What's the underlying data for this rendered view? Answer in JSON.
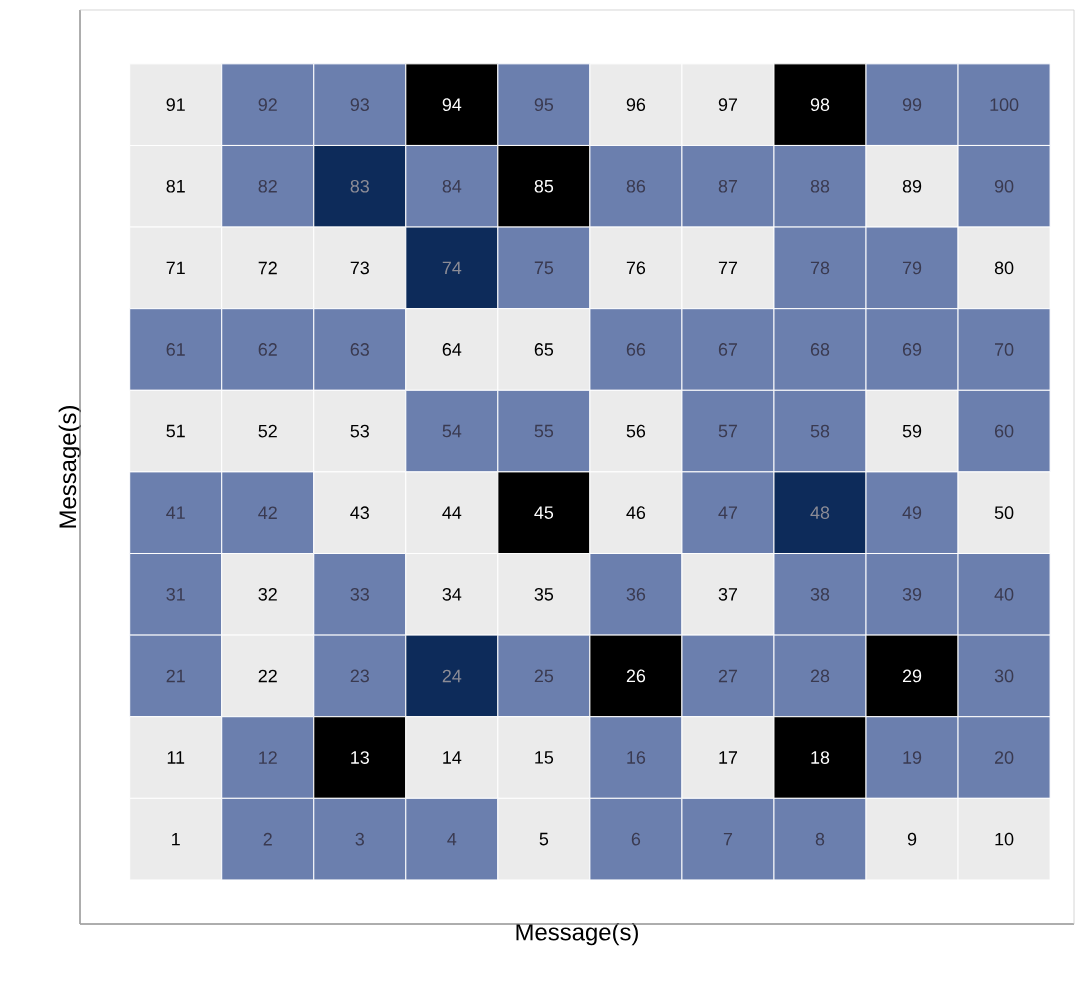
{
  "chart_data": {
    "type": "heatmap",
    "xlabel": "Message(s)",
    "ylabel": "Message(s)",
    "tick_labels": false,
    "data_labels": true,
    "categories": [
      null,
      null,
      null,
      null,
      null,
      null,
      null,
      null,
      null,
      null
    ],
    "y_categories": [
      null,
      null,
      null,
      null,
      null,
      null,
      null,
      null,
      null,
      null
    ],
    "cells": [
      [
        91,
        92,
        93,
        94,
        95,
        96,
        97,
        98,
        99,
        100
      ],
      [
        81,
        82,
        83,
        84,
        85,
        86,
        87,
        88,
        89,
        90
      ],
      [
        71,
        72,
        73,
        74,
        75,
        76,
        77,
        78,
        79,
        80
      ],
      [
        61,
        62,
        63,
        64,
        65,
        66,
        67,
        68,
        69,
        70
      ],
      [
        51,
        52,
        53,
        54,
        55,
        56,
        57,
        58,
        59,
        60
      ],
      [
        41,
        42,
        43,
        44,
        45,
        46,
        47,
        48,
        49,
        50
      ],
      [
        31,
        32,
        33,
        34,
        35,
        36,
        37,
        38,
        39,
        40
      ],
      [
        21,
        22,
        23,
        24,
        25,
        26,
        27,
        28,
        29,
        30
      ],
      [
        11,
        12,
        13,
        14,
        15,
        16,
        17,
        18,
        19,
        20
      ],
      [
        1,
        2,
        3,
        4,
        5,
        6,
        7,
        8,
        9,
        10
      ]
    ],
    "colors": [
      [
        "#ebebeb",
        "#6b7fae",
        "#6b7fae",
        "#000000",
        "#6b7fae",
        "#ebebeb",
        "#ebebeb",
        "#000000",
        "#6b7fae",
        "#6b7fae"
      ],
      [
        "#ebebeb",
        "#6b7fae",
        "#0d2b5a",
        "#6b7fae",
        "#000000",
        "#6b7fae",
        "#6b7fae",
        "#6b7fae",
        "#ebebeb",
        "#6b7fae"
      ],
      [
        "#ebebeb",
        "#ebebeb",
        "#ebebeb",
        "#0d2b5a",
        "#6b7fae",
        "#ebebeb",
        "#ebebeb",
        "#6b7fae",
        "#6b7fae",
        "#ebebeb"
      ],
      [
        "#6b7fae",
        "#6b7fae",
        "#6b7fae",
        "#ebebeb",
        "#ebebeb",
        "#6b7fae",
        "#6b7fae",
        "#6b7fae",
        "#6b7fae",
        "#6b7fae"
      ],
      [
        "#ebebeb",
        "#ebebeb",
        "#ebebeb",
        "#6b7fae",
        "#6b7fae",
        "#ebebeb",
        "#6b7fae",
        "#6b7fae",
        "#ebebeb",
        "#6b7fae"
      ],
      [
        "#6b7fae",
        "#6b7fae",
        "#ebebeb",
        "#ebebeb",
        "#000000",
        "#ebebeb",
        "#6b7fae",
        "#0d2b5a",
        "#6b7fae",
        "#ebebeb"
      ],
      [
        "#6b7fae",
        "#ebebeb",
        "#6b7fae",
        "#ebebeb",
        "#ebebeb",
        "#6b7fae",
        "#ebebeb",
        "#6b7fae",
        "#6b7fae",
        "#6b7fae"
      ],
      [
        "#6b7fae",
        "#ebebeb",
        "#6b7fae",
        "#0d2b5a",
        "#6b7fae",
        "#000000",
        "#6b7fae",
        "#6b7fae",
        "#000000",
        "#6b7fae"
      ],
      [
        "#ebebeb",
        "#6b7fae",
        "#000000",
        "#ebebeb",
        "#ebebeb",
        "#6b7fae",
        "#ebebeb",
        "#000000",
        "#6b7fae",
        "#6b7fae"
      ],
      [
        "#ebebeb",
        "#6b7fae",
        "#6b7fae",
        "#6b7fae",
        "#ebebeb",
        "#6b7fae",
        "#6b7fae",
        "#6b7fae",
        "#ebebeb",
        "#ebebeb"
      ]
    ]
  }
}
